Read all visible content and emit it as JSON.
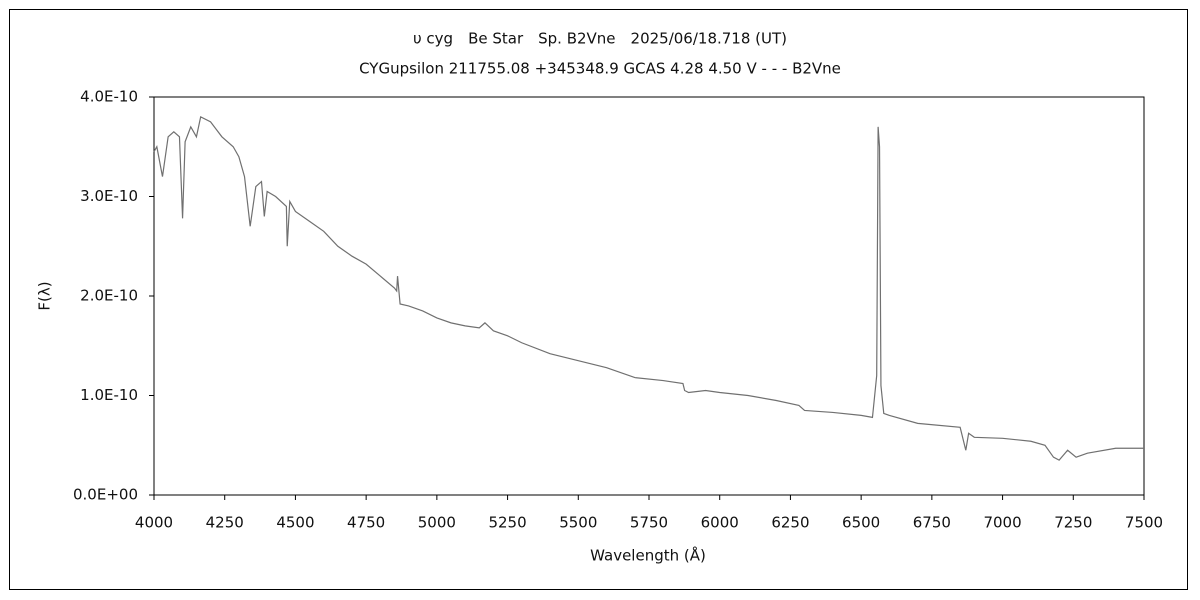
{
  "chart_data": {
    "type": "line",
    "title": "υ cyg　Be Star　Sp. B2Vne　2025/06/18.718 (UT)",
    "subtitle": "CYGupsilon 211755.08 +345348.9 GCAS 4.28 4.50 V - - - B2Vne",
    "xlabel": "Wavelength (Å)",
    "ylabel": "F(λ)",
    "xlim": [
      4000,
      7500
    ],
    "xticks": [
      4000,
      4250,
      4500,
      4750,
      5000,
      5250,
      5500,
      5750,
      6000,
      6250,
      6500,
      6750,
      7000,
      7250,
      7500
    ],
    "ylim": [
      0,
      4e-10
    ],
    "yticks": [
      {
        "value": 0,
        "label": "0.0E+00"
      },
      {
        "value": 1e-10,
        "label": "1.0E-10"
      },
      {
        "value": 2e-10,
        "label": "2.0E-10"
      },
      {
        "value": 3e-10,
        "label": "3.0E-10"
      },
      {
        "value": 4e-10,
        "label": "4.0E-10"
      }
    ],
    "grid": false,
    "series": [
      {
        "color": "#707070",
        "x": [
          4000,
          4010,
          4030,
          4050,
          4070,
          4090,
          4101,
          4110,
          4130,
          4150,
          4165,
          4200,
          4240,
          4280,
          4300,
          4320,
          4340,
          4360,
          4380,
          4390,
          4400,
          4430,
          4468,
          4471,
          4480,
          4500,
          4550,
          4600,
          4650,
          4700,
          4750,
          4800,
          4850,
          4858,
          4861,
          4870,
          4900,
          4950,
          5000,
          5050,
          5100,
          5150,
          5170,
          5200,
          5250,
          5300,
          5400,
          5500,
          5600,
          5700,
          5800,
          5870,
          5876,
          5890,
          5950,
          6000,
          6100,
          6200,
          6280,
          6300,
          6400,
          6500,
          6540,
          6555,
          6560,
          6565,
          6570,
          6580,
          6600,
          6700,
          6850,
          6870,
          6880,
          6900,
          7000,
          7100,
          7150,
          7180,
          7200,
          7230,
          7260,
          7300,
          7400,
          7500
        ],
        "values": [
          3.45e-10,
          3.5e-10,
          3.2e-10,
          3.6e-10,
          3.65e-10,
          3.6e-10,
          2.78e-10,
          3.55e-10,
          3.7e-10,
          3.6e-10,
          3.8e-10,
          3.75e-10,
          3.6e-10,
          3.5e-10,
          3.4e-10,
          3.2e-10,
          2.7e-10,
          3.1e-10,
          3.15e-10,
          2.8e-10,
          3.05e-10,
          3e-10,
          2.9e-10,
          2.5e-10,
          2.95e-10,
          2.85e-10,
          2.75e-10,
          2.65e-10,
          2.5e-10,
          2.4e-10,
          2.32e-10,
          2.2e-10,
          2.08e-10,
          2.05e-10,
          2.2e-10,
          1.92e-10,
          1.9e-10,
          1.85e-10,
          1.78e-10,
          1.73e-10,
          1.7e-10,
          1.68e-10,
          1.73e-10,
          1.65e-10,
          1.6e-10,
          1.53e-10,
          1.42e-10,
          1.35e-10,
          1.28e-10,
          1.18e-10,
          1.15e-10,
          1.12e-10,
          1.05e-10,
          1.03e-10,
          1.05e-10,
          1.03e-10,
          1e-10,
          9.5e-11,
          9e-11,
          8.5e-11,
          8.3e-11,
          8e-11,
          7.8e-11,
          1.2e-10,
          3.7e-10,
          3.5e-10,
          1.1e-10,
          8.2e-11,
          8e-11,
          7.2e-11,
          6.8e-11,
          4.5e-11,
          6.2e-11,
          5.8e-11,
          5.7e-11,
          5.4e-11,
          5e-11,
          3.8e-11,
          3.5e-11,
          4.5e-11,
          3.8e-11,
          4.2e-11,
          4.7e-11,
          4.7e-11
        ]
      }
    ]
  }
}
